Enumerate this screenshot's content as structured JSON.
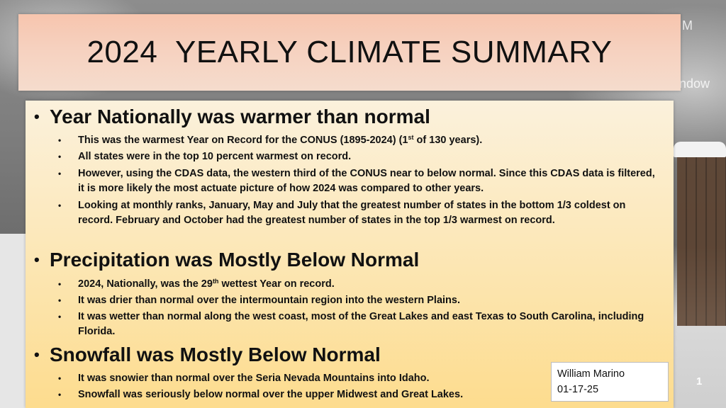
{
  "background": {
    "edge_text_top": "M",
    "edge_text_mid": "ndow"
  },
  "title": "2024  YEARLY CLIMATE SUMMARY",
  "sections": [
    {
      "heading": "Year Nationally was warmer than normal",
      "bullets": [
        {
          "pre": "This was the warmest Year on Record for the CONUS (1895-2024) (1",
          "sup": "st",
          "post": " of 130 years)."
        },
        {
          "pre": "All states were in the top 10 percent warmest on record.",
          "sup": "",
          "post": ""
        },
        {
          "pre": "However, using the CDAS data, the western third of the CONUS near to below normal.  Since this CDAS data is filtered, it is more likely the most actuate picture of how 2024 was compared to other years.",
          "sup": "",
          "post": ""
        },
        {
          "pre": "Looking at monthly ranks, January, May and July that the greatest number of states in the bottom 1/3 coldest on record. February and October had the greatest number of states in the top 1/3 warmest on record.",
          "sup": "",
          "post": ""
        }
      ]
    },
    {
      "heading": "Precipitation was Mostly Below Normal",
      "bullets": [
        {
          "pre": "2024, Nationally, was the 29",
          "sup": "th",
          "post": " wettest Year on record."
        },
        {
          "pre": "It was drier than normal over the intermountain region into the western Plains.",
          "sup": "",
          "post": ""
        },
        {
          "pre": "It was wetter than normal along the west coast, most of the Great Lakes and east Texas to South Carolina, including Florida.",
          "sup": "",
          "post": ""
        }
      ]
    },
    {
      "heading": "Snowfall was Mostly Below Normal",
      "bullets": [
        {
          "pre": "It was snowier than normal over the Seria Nevada Mountains into Idaho.",
          "sup": "",
          "post": ""
        },
        {
          "pre": "Snowfall was seriously below normal over the upper Midwest and Great Lakes.",
          "sup": "",
          "post": ""
        }
      ]
    }
  ],
  "author": {
    "name": "William Marino",
    "date": "01-17-25"
  },
  "slide_number": "1",
  "colors": {
    "title_fill": "#f7c5ae",
    "panel_top": "#fbf1dc",
    "panel_bottom": "#fddc8e"
  }
}
